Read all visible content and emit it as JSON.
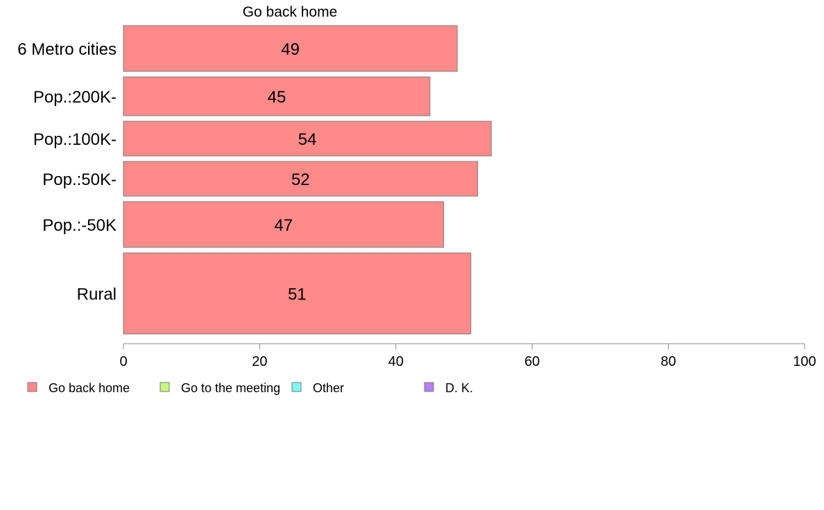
{
  "chart_data": {
    "type": "bar",
    "orientation": "horizontal",
    "title": "Go back home",
    "categories": [
      "6 Metro cities",
      "Pop.:200K-",
      "Pop.:100K-",
      "Pop.:50K-",
      "Pop.:-50K",
      "Rural"
    ],
    "series": [
      {
        "name": "Go back home",
        "values": [
          49,
          45,
          54,
          52,
          47,
          51
        ],
        "color": "#ff8a8a"
      }
    ],
    "value_labels": [
      "49",
      "45",
      "54",
      "52",
      "47",
      "51"
    ],
    "xlim": [
      0,
      100
    ],
    "xticks": [
      "0",
      "20",
      "40",
      "60",
      "80",
      "100"
    ],
    "xlabel": "",
    "ylabel": "",
    "grid": false,
    "legend": {
      "placement": "bottom-left",
      "entries": [
        {
          "name": "Go back home",
          "color": "#ff8a8a"
        },
        {
          "name": "Go to the meeting",
          "color": "#c8f77e"
        },
        {
          "name": "Other",
          "color": "#7ff7f2"
        },
        {
          "name": "D. K.",
          "color": "#b47ff2"
        }
      ]
    }
  }
}
